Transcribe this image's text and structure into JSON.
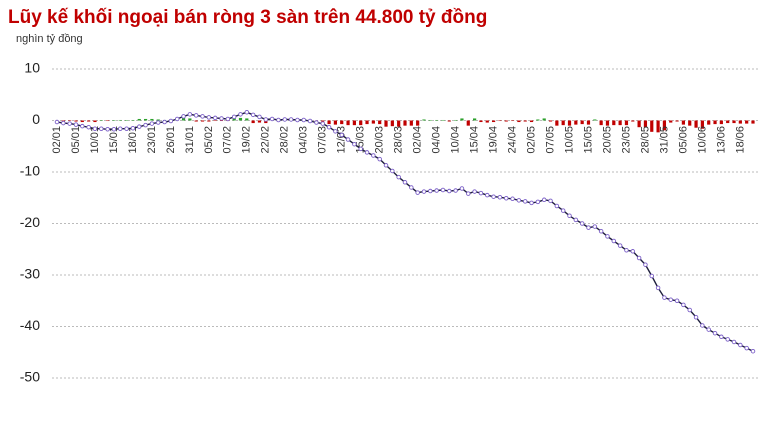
{
  "chart_data": {
    "type": "combo",
    "title": "Lũy kế khối ngoại bán ròng 3 sàn trên 44.800 tỷ đồng",
    "subtitle": "nghìn tỷ đồng",
    "categories": [
      "02/01",
      null,
      null,
      "05/01",
      null,
      null,
      "10/01",
      null,
      null,
      "15/01",
      null,
      null,
      "18/01",
      null,
      null,
      "23/01",
      null,
      null,
      "26/01",
      null,
      null,
      "31/01",
      null,
      null,
      "05/02",
      null,
      null,
      "07/02",
      null,
      null,
      "19/02",
      null,
      null,
      "22/02",
      null,
      null,
      "28/02",
      null,
      null,
      "04/03",
      null,
      null,
      "07/03",
      null,
      null,
      "12/03",
      null,
      null,
      "15/03",
      null,
      null,
      "20/03",
      null,
      null,
      "28/03",
      null,
      null,
      "02/04",
      null,
      null,
      "04/04",
      null,
      null,
      "10/04",
      null,
      null,
      "15/04",
      null,
      null,
      "19/04",
      null,
      null,
      "24/04",
      null,
      null,
      "02/05",
      null,
      null,
      "07/05",
      null,
      null,
      "10/05",
      null,
      null,
      "15/05",
      null,
      null,
      "20/05",
      null,
      null,
      "23/05",
      null,
      null,
      "28/05",
      null,
      null,
      "31/05",
      null,
      null,
      "05/06",
      null,
      null,
      "10/06",
      null,
      null,
      "13/06",
      null,
      null,
      "18/06",
      null,
      null
    ],
    "bars": {
      "positive_color": "#2ca02c",
      "negative_color": "#c00000",
      "values": [
        -0.3,
        -0.2,
        -0.1,
        -0.2,
        -0.3,
        -0.2,
        -0.3,
        0,
        -0.1,
        0,
        0.1,
        0,
        0.1,
        0.3,
        0.3,
        0.3,
        0.2,
        0.1,
        0.2,
        0.4,
        0.5,
        0.4,
        -0.2,
        -0.2,
        -0.2,
        -0.1,
        -0.1,
        -0.1,
        0.4,
        0.5,
        0.4,
        -0.5,
        -0.4,
        -0.5,
        0.1,
        -0.2,
        0.1,
        0,
        -0.1,
        0,
        -0.2,
        -0.3,
        -0.2,
        -0.7,
        -0.8,
        -0.7,
        -0.9,
        -0.9,
        -0.9,
        -0.7,
        -0.6,
        -0.7,
        -1.2,
        -1.1,
        -1.2,
        -1,
        -1,
        -1,
        0.2,
        0.1,
        0.1,
        0.1,
        -0.2,
        0.1,
        0.4,
        -1,
        0.4,
        -0.3,
        -0.4,
        -0.3,
        -0.1,
        -0.2,
        -0.1,
        -0.3,
        -0.2,
        -0.3,
        0.2,
        0.4,
        -0.2,
        -1,
        -0.9,
        -1,
        -0.8,
        -0.7,
        -0.8,
        0.2,
        -0.9,
        -1,
        -0.9,
        -0.9,
        -0.9,
        -0.2,
        -1.3,
        -1.3,
        -2.2,
        -2.3,
        -1.9,
        -0.4,
        -0.2,
        -0.8,
        -1,
        -1.4,
        -1.6,
        -0.8,
        -0.7,
        -0.7,
        -0.5,
        -0.5,
        -0.6,
        -0.6,
        -0.6
      ]
    },
    "line": {
      "color": "#1f1f3d",
      "marker_color": "#7b5fc7",
      "values": [
        -0.3,
        -0.5,
        -0.6,
        -0.8,
        -1.1,
        -1.3,
        -1.6,
        -1.6,
        -1.7,
        -1.7,
        -1.6,
        -1.6,
        -1.5,
        -1.2,
        -0.9,
        -0.6,
        -0.4,
        -0.3,
        -0.1,
        0.3,
        0.8,
        1.2,
        1.0,
        0.8,
        0.6,
        0.5,
        0.4,
        0.3,
        0.7,
        1.2,
        1.6,
        1.1,
        0.7,
        0.2,
        0.3,
        0.1,
        0.2,
        0.2,
        0.1,
        0.1,
        -0.1,
        -0.4,
        -0.6,
        -1.3,
        -2.1,
        -2.8,
        -3.7,
        -4.6,
        -5.5,
        -6.2,
        -6.8,
        -7.5,
        -8.7,
        -9.8,
        -11,
        -12,
        -13,
        -14,
        -13.8,
        -13.7,
        -13.6,
        -13.5,
        -13.7,
        -13.6,
        -13.2,
        -14.2,
        -13.8,
        -14.1,
        -14.5,
        -14.8,
        -14.9,
        -15.1,
        -15.2,
        -15.5,
        -15.7,
        -16,
        -15.8,
        -15.4,
        -15.6,
        -16.6,
        -17.5,
        -18.5,
        -19.3,
        -20.0,
        -20.8,
        -20.6,
        -21.5,
        -22.5,
        -23.4,
        -24.3,
        -25.2,
        -25.4,
        -26.7,
        -28,
        -30.2,
        -32.5,
        -34.4,
        -34.8,
        -35.0,
        -35.8,
        -36.8,
        -38.2,
        -39.8,
        -40.6,
        -41.3,
        -42,
        -42.5,
        -43.0,
        -43.6,
        -44.2,
        -44.8
      ]
    },
    "ylim": [
      -50,
      10
    ],
    "yticks": [
      -50,
      -40,
      -30,
      -20,
      -10,
      0,
      10
    ],
    "grid": true
  }
}
